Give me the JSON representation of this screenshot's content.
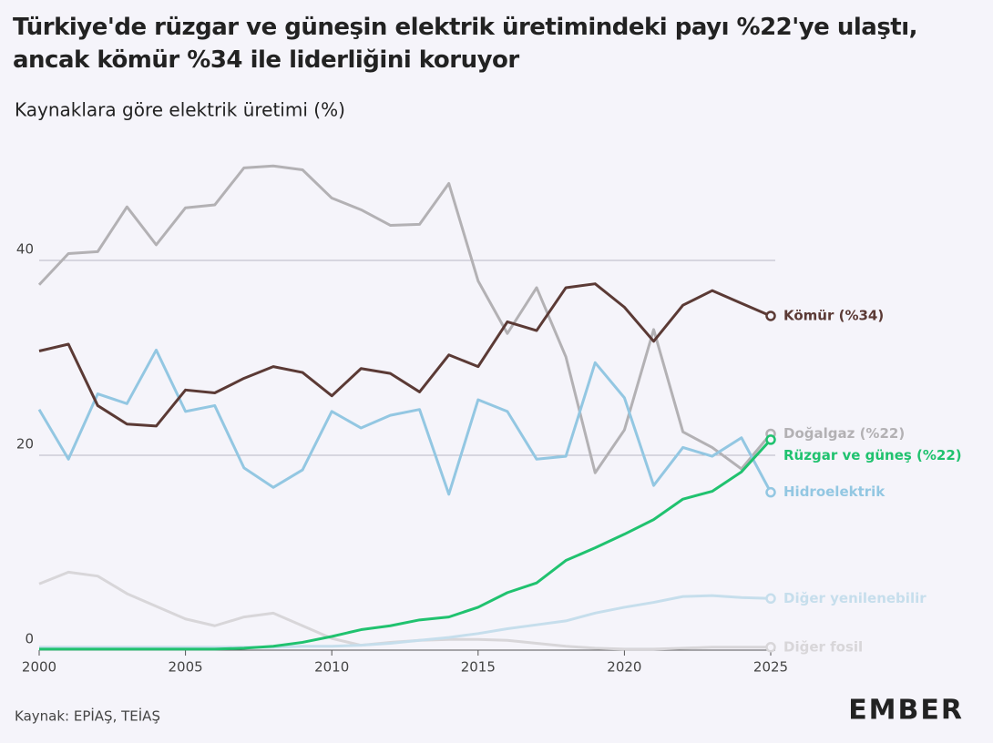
{
  "chart_data": {
    "type": "line",
    "title": "Türkiye'de rüzgar ve güneşin elektrik üretimindeki payı %22'ye ulaştı, ancak kömür %34 ile liderliğini koruyor",
    "subtitle": "Kaynaklara göre elektrik üretimi (%)",
    "source": "Kaynak: EPİAŞ, TEİAŞ",
    "logo": "EMBER",
    "x": [
      2000,
      2001,
      2002,
      2003,
      2004,
      2005,
      2006,
      2007,
      2008,
      2009,
      2010,
      2011,
      2012,
      2013,
      2014,
      2015,
      2016,
      2017,
      2018,
      2019,
      2020,
      2021,
      2022,
      2023,
      2024,
      2025
    ],
    "xlim": [
      2000,
      2025
    ],
    "xticks": [
      2000,
      2005,
      2010,
      2015,
      2020,
      2025
    ],
    "ylim": [
      0,
      52
    ],
    "yticks": [
      0,
      20,
      40
    ],
    "grid": true,
    "series": [
      {
        "name": "Doğalgaz (%22)",
        "color": "#b3b1b4",
        "values": [
          37.5,
          40.7,
          40.9,
          45.5,
          41.6,
          45.4,
          45.7,
          49.5,
          49.7,
          49.3,
          46.4,
          45.2,
          43.6,
          43.7,
          47.9,
          37.9,
          32.5,
          37.2,
          30.1,
          18.2,
          22.6,
          32.9,
          22.4,
          20.8,
          18.6,
          22.2
        ]
      },
      {
        "name": "Diğer fosil",
        "color": "#d8d6d9",
        "values": [
          6.8,
          8.0,
          7.6,
          5.8,
          4.5,
          3.2,
          2.5,
          3.4,
          3.8,
          2.5,
          1.2,
          0.5,
          0.8,
          1.0,
          1.1,
          1.1,
          1.0,
          0.7,
          0.4,
          0.2,
          0.1,
          0.1,
          0.2,
          0.3,
          0.3,
          0.3
        ]
      },
      {
        "name": "Diğer yenilenebilir",
        "color": "#c6deec",
        "values": [
          0.3,
          0.3,
          0.3,
          0.3,
          0.3,
          0.3,
          0.3,
          0.3,
          0.3,
          0.4,
          0.4,
          0.5,
          0.7,
          1.0,
          1.3,
          1.7,
          2.2,
          2.6,
          3.0,
          3.8,
          4.4,
          4.9,
          5.5,
          5.6,
          5.4,
          5.3
        ]
      },
      {
        "name": "Hidroelektrik",
        "color": "#93c7e2",
        "values": [
          24.7,
          19.6,
          26.3,
          25.3,
          30.8,
          24.5,
          25.1,
          18.7,
          16.7,
          18.5,
          24.5,
          22.8,
          24.1,
          24.7,
          16.0,
          25.7,
          24.5,
          19.6,
          19.9,
          29.5,
          25.9,
          16.9,
          20.8,
          19.9,
          21.8,
          16.2
        ]
      },
      {
        "name": "Kömür (%34)",
        "color": "#5b3a35",
        "values": [
          30.7,
          31.4,
          25.1,
          23.2,
          23.0,
          26.7,
          26.4,
          27.9,
          29.1,
          28.5,
          26.1,
          28.9,
          28.4,
          26.5,
          30.3,
          29.1,
          33.7,
          32.8,
          37.2,
          37.6,
          35.2,
          31.7,
          35.4,
          36.9,
          35.6,
          34.3
        ]
      },
      {
        "name": "Rüzgar ve güneş (%22)",
        "color": "#20c26f",
        "values": [
          0.1,
          0.1,
          0.1,
          0.1,
          0.1,
          0.1,
          0.1,
          0.2,
          0.4,
          0.8,
          1.4,
          2.1,
          2.5,
          3.1,
          3.4,
          4.4,
          5.9,
          6.9,
          9.2,
          10.5,
          11.9,
          13.4,
          15.5,
          16.3,
          18.3,
          21.6
        ]
      }
    ]
  }
}
